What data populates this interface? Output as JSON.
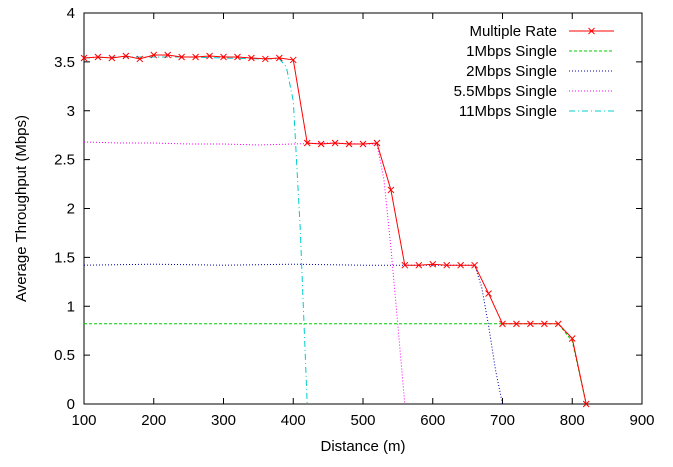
{
  "chart_data": {
    "type": "line",
    "xlabel": "Distance (m)",
    "ylabel": "Average Throughput (Mbps)",
    "xlim": [
      100,
      900
    ],
    "ylim": [
      0,
      4
    ],
    "xticks": [
      100,
      200,
      300,
      400,
      500,
      600,
      700,
      800,
      900
    ],
    "yticks": [
      0,
      0.5,
      1,
      1.5,
      2,
      2.5,
      3,
      3.5,
      4
    ],
    "grid": false,
    "legend": "top-right",
    "series": [
      {
        "name": "Multiple Rate",
        "color": "#ff0000",
        "style": "solid",
        "marker": "x",
        "x": [
          100,
          120,
          140,
          160,
          180,
          200,
          220,
          240,
          260,
          280,
          300,
          320,
          340,
          360,
          380,
          400,
          420,
          440,
          460,
          480,
          500,
          520,
          540,
          560,
          580,
          600,
          620,
          640,
          660,
          680,
          700,
          720,
          740,
          760,
          780,
          800,
          820
        ],
        "y": [
          3.54,
          3.55,
          3.54,
          3.56,
          3.53,
          3.57,
          3.57,
          3.55,
          3.55,
          3.56,
          3.55,
          3.55,
          3.54,
          3.53,
          3.54,
          3.52,
          2.67,
          2.66,
          2.67,
          2.66,
          2.66,
          2.67,
          2.19,
          1.42,
          1.42,
          1.43,
          1.42,
          1.42,
          1.42,
          1.13,
          0.82,
          0.82,
          0.82,
          0.82,
          0.82,
          0.67,
          0.0
        ]
      },
      {
        "name": "1Mbps Single",
        "color": "#00cc00",
        "style": "dashed",
        "x": [
          100,
          200,
          300,
          400,
          500,
          600,
          700,
          780,
          800,
          820
        ],
        "y": [
          0.82,
          0.82,
          0.82,
          0.82,
          0.82,
          0.82,
          0.82,
          0.82,
          0.64,
          0.0
        ]
      },
      {
        "name": "2Mbps Single",
        "color": "#0000aa",
        "style": "dotted",
        "x": [
          100,
          200,
          300,
          400,
          500,
          600,
          660,
          670,
          680,
          690,
          700
        ],
        "y": [
          1.42,
          1.43,
          1.42,
          1.43,
          1.42,
          1.42,
          1.42,
          1.2,
          0.8,
          0.35,
          0.0
        ]
      },
      {
        "name": "5.5Mbps Single",
        "color": "#ff00ff",
        "style": "dotted",
        "x": [
          100,
          150,
          200,
          250,
          300,
          350,
          400,
          450,
          500,
          520,
          530,
          540,
          550,
          560
        ],
        "y": [
          2.68,
          2.67,
          2.67,
          2.66,
          2.66,
          2.65,
          2.66,
          2.67,
          2.66,
          2.66,
          2.3,
          1.6,
          0.8,
          0.0
        ]
      },
      {
        "name": "11Mbps Single",
        "color": "#00cccc",
        "style": "dashdot",
        "x": [
          100,
          150,
          200,
          250,
          300,
          350,
          380,
          390,
          400,
          410,
          420
        ],
        "y": [
          3.54,
          3.55,
          3.55,
          3.55,
          3.54,
          3.53,
          3.53,
          3.45,
          3.1,
          1.8,
          0.0
        ]
      }
    ]
  }
}
